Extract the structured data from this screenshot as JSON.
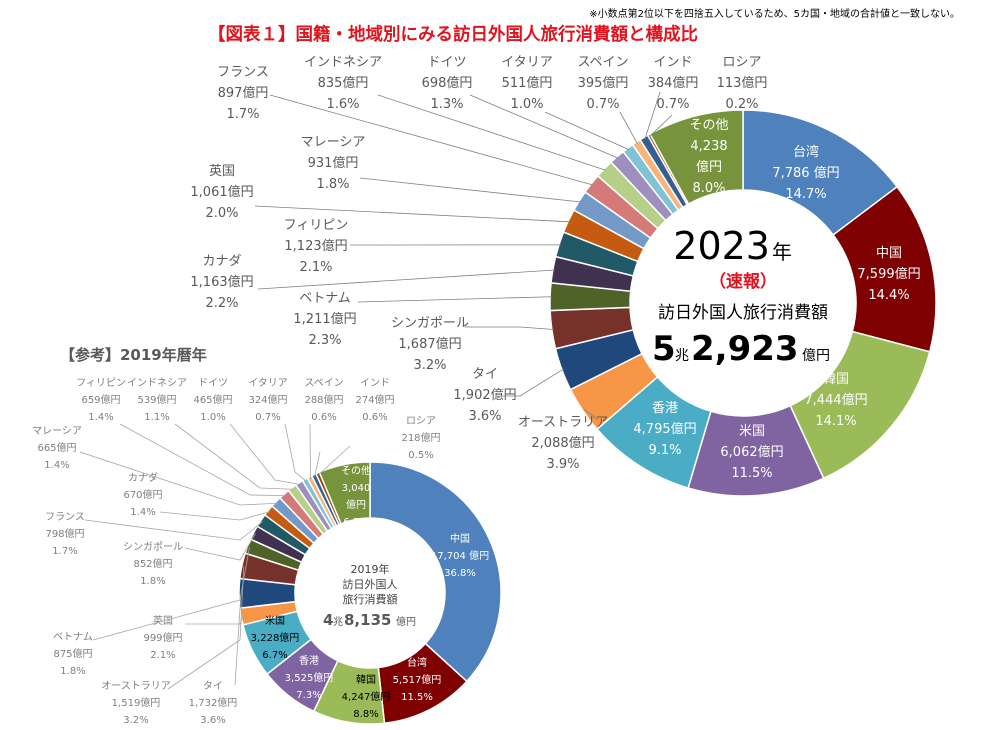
{
  "note": "※小数点第2位以下を四捨五入しているため、5カ国・地域の合計値と一致しない。",
  "title": "【図表１】国籍・地域別にみる訪日外国人旅行消費額と構成比",
  "colors": {
    "title_red": "#e0141e",
    "label_gray": "#595959",
    "small_gray": "#7f7f7f"
  },
  "chart_data": [
    {
      "type": "pie",
      "variant": "donut",
      "center": {
        "year": "2023",
        "year_suffix": "年",
        "flag": "（速報）",
        "caption": "訪日外国人旅行消費額",
        "total_big1": "5",
        "total_unit1": "兆",
        "total_big2": "2,923",
        "total_unit2": "億円"
      },
      "slices": [
        {
          "name": "台湾",
          "amount": "7,786 億円",
          "value": 7786,
          "share": "14.7%",
          "color": "#4f81bd"
        },
        {
          "name": "中国",
          "amount": "7,599億円",
          "value": 7599,
          "share": "14.4%",
          "color": "#7f0000"
        },
        {
          "name": "韓国",
          "amount": "7,444億円",
          "value": 7444,
          "share": "14.1%",
          "color": "#9bbb59"
        },
        {
          "name": "米国",
          "amount": "6,062億円",
          "value": 6062,
          "share": "11.5%",
          "color": "#8064a2"
        },
        {
          "name": "香港",
          "amount": "4,795億円",
          "value": 4795,
          "share": "9.1%",
          "color": "#4bacc6"
        },
        {
          "name": "オーストラリア",
          "amount": "2,088億円",
          "value": 2088,
          "share": "3.9%",
          "color": "#f79646"
        },
        {
          "name": "タイ",
          "amount": "1,902億円",
          "value": 1902,
          "share": "3.6%",
          "color": "#1f497d"
        },
        {
          "name": "シンガポール",
          "amount": "1,687億円",
          "value": 1687,
          "share": "3.2%",
          "color": "#77312b"
        },
        {
          "name": "ベトナム",
          "amount": "1,211億円",
          "value": 1211,
          "share": "2.3%",
          "color": "#4f6228"
        },
        {
          "name": "カナダ",
          "amount": "1,163億円",
          "value": 1163,
          "share": "2.2%",
          "color": "#403151"
        },
        {
          "name": "フィリピン",
          "amount": "1,123億円",
          "value": 1123,
          "share": "2.1%",
          "color": "#215967"
        },
        {
          "name": "英国",
          "amount": "1,061億円",
          "value": 1061,
          "share": "2.0%",
          "color": "#c55a11"
        },
        {
          "name": "マレーシア",
          "amount": "931億円",
          "value": 931,
          "share": "1.8%",
          "color": "#7399c6"
        },
        {
          "name": "フランス",
          "amount": "897億円",
          "value": 897,
          "share": "1.7%",
          "color": "#d47a78"
        },
        {
          "name": "インドネシア",
          "amount": "835億円",
          "value": 835,
          "share": "1.6%",
          "color": "#b6d08a"
        },
        {
          "name": "ドイツ",
          "amount": "698億円",
          "value": 698,
          "share": "1.3%",
          "color": "#9f8fbf"
        },
        {
          "name": "イタリア",
          "amount": "511億円",
          "value": 511,
          "share": "1.0%",
          "color": "#7fc4d6"
        },
        {
          "name": "スペイン",
          "amount": "395億円",
          "value": 395,
          "share": "0.7%",
          "color": "#f9b47a"
        },
        {
          "name": "インド",
          "amount": "384億円",
          "value": 384,
          "share": "0.7%",
          "color": "#355f91"
        },
        {
          "name": "ロシア",
          "amount": "113億円",
          "value": 113,
          "share": "0.2%",
          "color": "#984807"
        },
        {
          "name": "その他",
          "amount": "4,238\n億円",
          "value": 4238,
          "share": "8.0%",
          "color": "#77933c"
        }
      ]
    },
    {
      "type": "pie",
      "variant": "donut",
      "heading": "【参考】2019年暦年",
      "center": {
        "line1": "2019年",
        "line2": "訪日外国人",
        "line3": "旅行消費額",
        "total_big1": "4",
        "total_unit1": "兆",
        "total_big2": "8,135",
        "total_unit2": "億円"
      },
      "slices": [
        {
          "name": "中国",
          "amount": "17,704 億円",
          "value": 17704,
          "share": "36.8%",
          "color": "#4f81bd"
        },
        {
          "name": "台湾",
          "amount": "5,517億円",
          "value": 5517,
          "share": "11.5%",
          "color": "#7f0000"
        },
        {
          "name": "韓国",
          "amount": "4,247億円",
          "value": 4247,
          "share": "8.8%",
          "color": "#9bbb59"
        },
        {
          "name": "香港",
          "amount": "3,525億円",
          "value": 3525,
          "share": "7.3%",
          "color": "#8064a2"
        },
        {
          "name": "米国",
          "amount": "3,228億円",
          "value": 3228,
          "share": "6.7%",
          "color": "#4bacc6"
        },
        {
          "name": "英国",
          "amount": "999億円",
          "value": 999,
          "share": "2.1%",
          "color": "#f79646"
        },
        {
          "name": "タイ",
          "amount": "1,732億円",
          "value": 1732,
          "share": "3.6%",
          "color": "#1f497d"
        },
        {
          "name": "オーストラリア",
          "amount": "1,519億円",
          "value": 1519,
          "share": "3.2%",
          "color": "#77312b"
        },
        {
          "name": "ベトナム",
          "amount": "875億円",
          "value": 875,
          "share": "1.8%",
          "color": "#4f6228"
        },
        {
          "name": "シンガポール",
          "amount": "852億円",
          "value": 852,
          "share": "1.8%",
          "color": "#403151"
        },
        {
          "name": "フランス",
          "amount": "798億円",
          "value": 798,
          "share": "1.7%",
          "color": "#215967"
        },
        {
          "name": "カナダ",
          "amount": "670億円",
          "value": 670,
          "share": "1.4%",
          "color": "#c55a11"
        },
        {
          "name": "マレーシア",
          "amount": "665億円",
          "value": 665,
          "share": "1.4%",
          "color": "#7399c6"
        },
        {
          "name": "フィリピン",
          "amount": "659億円",
          "value": 659,
          "share": "1.4%",
          "color": "#d47a78"
        },
        {
          "name": "インドネシア",
          "amount": "539億円",
          "value": 539,
          "share": "1.1%",
          "color": "#b6d08a"
        },
        {
          "name": "ドイツ",
          "amount": "465億円",
          "value": 465,
          "share": "1.0%",
          "color": "#9f8fbf"
        },
        {
          "name": "イタリア",
          "amount": "324億円",
          "value": 324,
          "share": "0.7%",
          "color": "#7fc4d6"
        },
        {
          "name": "スペイン",
          "amount": "288億円",
          "value": 288,
          "share": "0.6%",
          "color": "#f9b47a"
        },
        {
          "name": "インド",
          "amount": "274億円",
          "value": 274,
          "share": "0.6%",
          "color": "#355f91"
        },
        {
          "name": "ロシア",
          "amount": "218億円",
          "value": 218,
          "share": "0.5%",
          "color": "#984807"
        },
        {
          "name": "その他",
          "amount": "3,040\n億円",
          "value": 3040,
          "share": "6.3%",
          "color": "#77933c"
        }
      ]
    }
  ]
}
